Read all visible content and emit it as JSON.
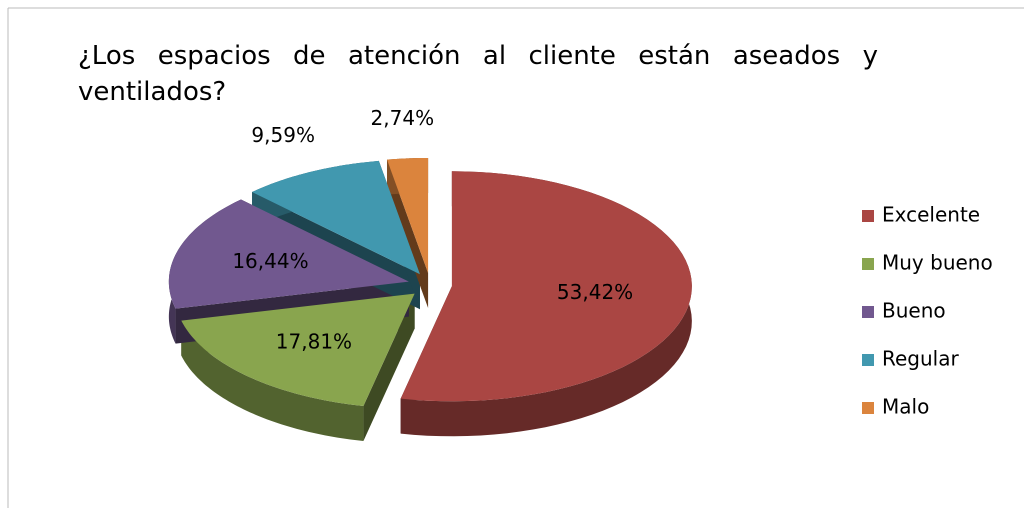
{
  "chart_data": {
    "type": "pie",
    "title": "¿Los espacios de atención al cliente están aseados y ventilados?",
    "categories": [
      "Excelente",
      "Muy bueno",
      "Bueno",
      "Regular",
      "Malo"
    ],
    "values": [
      53.42,
      17.81,
      16.44,
      9.59,
      2.74
    ],
    "value_labels": [
      "53,42%",
      "17,81%",
      "16,44%",
      "9,59%",
      "2,74%"
    ],
    "colors": [
      "#aa4643",
      "#89a54e",
      "#71588f",
      "#4198af",
      "#db843d"
    ],
    "legend": "right"
  }
}
